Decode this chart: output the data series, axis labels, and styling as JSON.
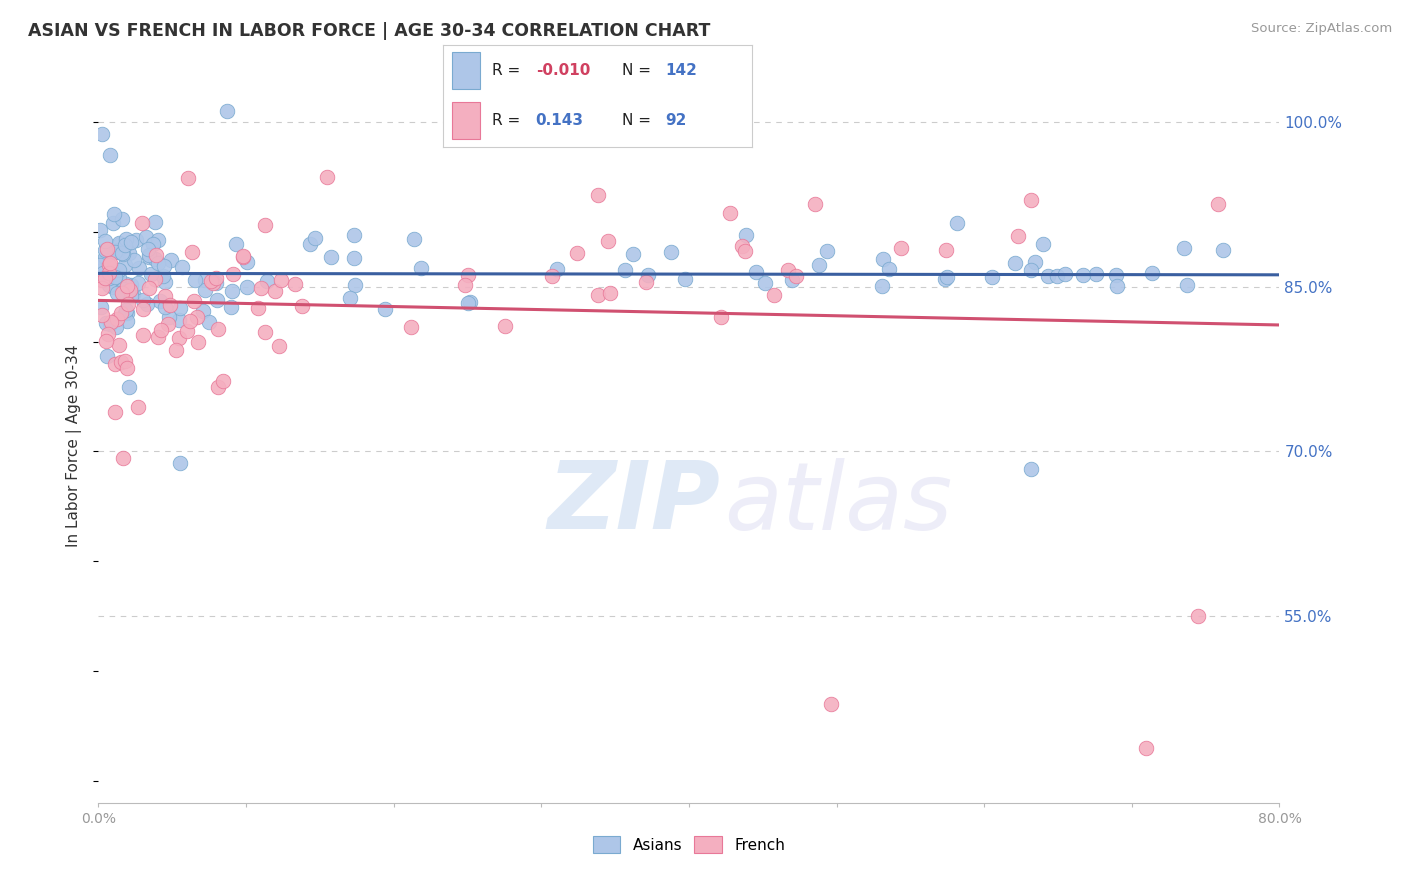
{
  "title": "ASIAN VS FRENCH IN LABOR FORCE | AGE 30-34 CORRELATION CHART",
  "source_text": "Source: ZipAtlas.com",
  "ylabel": "In Labor Force | Age 30-34",
  "xlim_data": [
    0.0,
    80.0
  ],
  "ylim_data": [
    38.0,
    103.0
  ],
  "ytick_labels": [
    "55.0%",
    "70.0%",
    "85.0%",
    "100.0%"
  ],
  "ytick_values": [
    55.0,
    70.0,
    85.0,
    100.0
  ],
  "asian_color": "#aec6e8",
  "french_color": "#f4afc0",
  "asian_edge": "#7aaad0",
  "french_edge": "#e87898",
  "asian_line_color": "#3a5fa0",
  "french_line_color": "#d05070",
  "R_asian": -0.01,
  "N_asian": 142,
  "R_french": 0.143,
  "N_french": 92,
  "legend_R_neg_color": "#d04060",
  "legend_R_pos_color": "#4472c4",
  "legend_N_color": "#4472c4",
  "ytick_color": "#4472c4",
  "xtick_color": "#999999",
  "grid_color": "#cccccc",
  "title_color": "#333333",
  "source_color": "#999999",
  "ylabel_color": "#333333"
}
